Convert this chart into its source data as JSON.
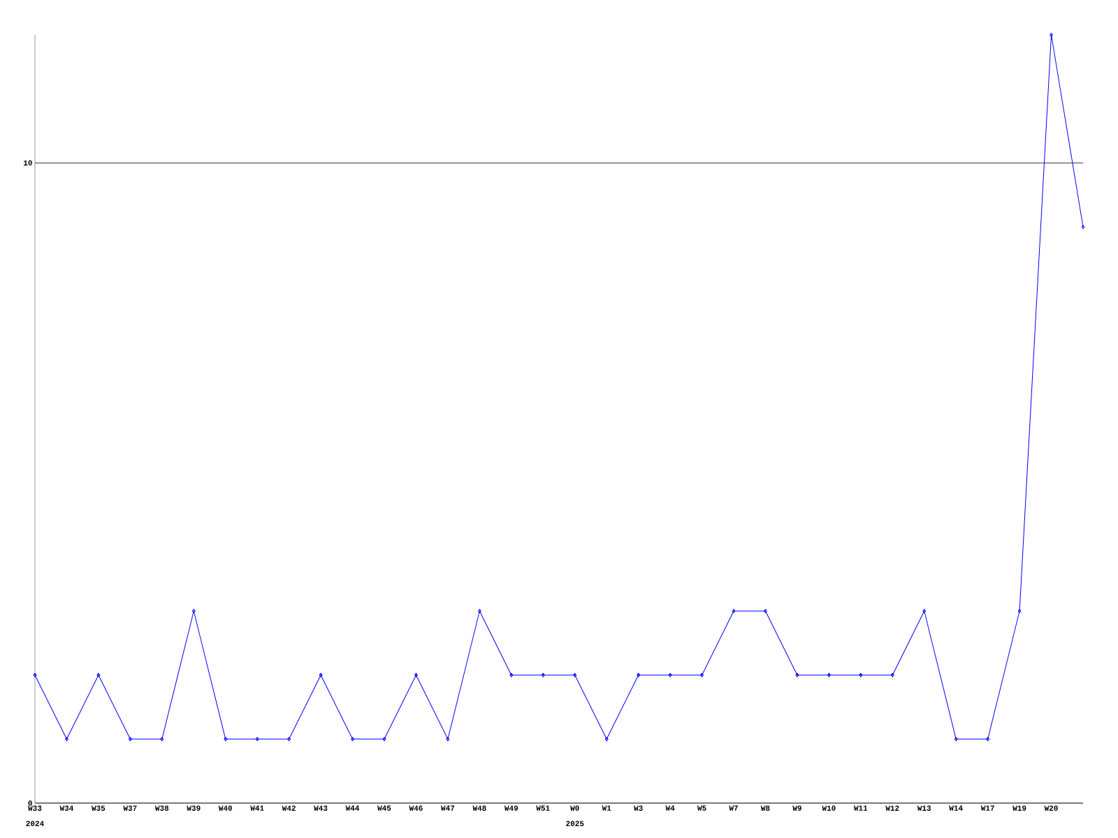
{
  "chart_data": {
    "type": "line",
    "categories": [
      "W33",
      "W34",
      "W35",
      "W37",
      "W38",
      "W39",
      "W40",
      "W41",
      "W42",
      "W43",
      "W44",
      "W45",
      "W46",
      "W47",
      "W48",
      "W49",
      "W51",
      "W0",
      "W1",
      "W3",
      "W4",
      "W5",
      "W7",
      "W8",
      "W9",
      "W10",
      "W11",
      "W12",
      "W13",
      "W14",
      "W17",
      "W19",
      "W20",
      null
    ],
    "values": [
      2,
      1,
      2,
      1,
      1,
      3,
      1,
      1,
      1,
      2,
      1,
      1,
      2,
      1,
      3,
      2,
      2,
      2,
      1,
      2,
      2,
      2,
      3,
      3,
      2,
      2,
      2,
      2,
      3,
      1,
      1,
      3,
      12,
      9
    ],
    "color": "#0000ff",
    "marker": "diamond",
    "grid": "y",
    "ylim": [
      0,
      12
    ],
    "yticks": [
      0,
      10
    ],
    "annotations": [
      "2024",
      "2025"
    ]
  }
}
